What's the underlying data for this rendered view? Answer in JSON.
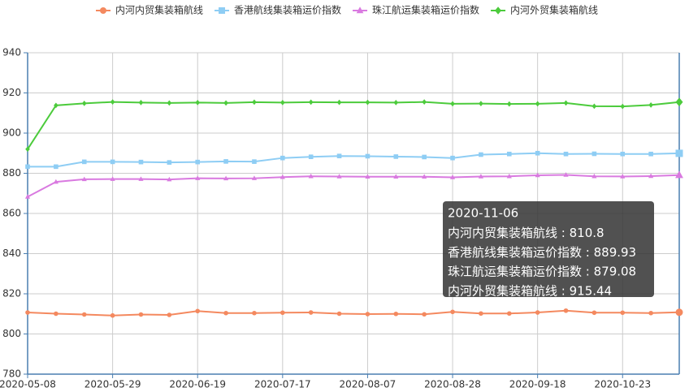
{
  "chart_data": {
    "type": "line",
    "categories": [
      "2020-05-08",
      null,
      null,
      "2020-05-29",
      null,
      null,
      "2020-06-19",
      null,
      null,
      "2020-07-17",
      null,
      null,
      "2020-08-07",
      null,
      null,
      "2020-08-28",
      null,
      null,
      "2020-09-18",
      null,
      null,
      "2020-10-23",
      null,
      null
    ],
    "series": [
      {
        "name": "内河内贸集装箱航线",
        "color": "#f4895f",
        "marker": "circle",
        "values": [
          810.7,
          810.1,
          809.7,
          809.2,
          809.7,
          809.5,
          811.4,
          810.4,
          810.4,
          810.6,
          810.7,
          810.1,
          809.9,
          810.0,
          809.8,
          811.0,
          810.2,
          810.2,
          810.7,
          811.6,
          810.6,
          810.6,
          810.4,
          810.8
        ]
      },
      {
        "name": "香港航线集装箱运价指数",
        "color": "#8ecdf4",
        "marker": "square",
        "values": [
          883.3,
          883.3,
          885.7,
          885.7,
          885.6,
          885.4,
          885.6,
          885.9,
          885.8,
          887.6,
          888.2,
          888.6,
          888.5,
          888.3,
          888.1,
          887.6,
          889.3,
          889.6,
          890.0,
          889.6,
          889.7,
          889.6,
          889.6,
          889.93
        ]
      },
      {
        "name": "珠江航运集装箱运价指数",
        "color": "#d97ae0",
        "marker": "triangle",
        "values": [
          868.3,
          875.7,
          877.0,
          877.1,
          877.1,
          876.9,
          877.5,
          877.4,
          877.5,
          878.1,
          878.5,
          878.4,
          878.3,
          878.3,
          878.3,
          878.0,
          878.4,
          878.5,
          879.0,
          879.2,
          878.5,
          878.4,
          878.6,
          879.08
        ]
      },
      {
        "name": "内河外贸集装箱航线",
        "color": "#4ccb3c",
        "marker": "diamond",
        "values": [
          892.0,
          913.8,
          914.8,
          915.5,
          915.2,
          915.0,
          915.2,
          915.0,
          915.4,
          915.2,
          915.4,
          915.3,
          915.3,
          915.2,
          915.5,
          914.6,
          914.7,
          914.5,
          914.6,
          915.0,
          913.4,
          913.3,
          914.0,
          915.44
        ]
      }
    ],
    "ylim": [
      780,
      940
    ],
    "yticks": [
      780,
      800,
      820,
      840,
      860,
      880,
      900,
      920,
      940
    ],
    "grid": true,
    "tooltip": {
      "date": "2020-11-06",
      "separator": " : ",
      "index": 23
    }
  }
}
